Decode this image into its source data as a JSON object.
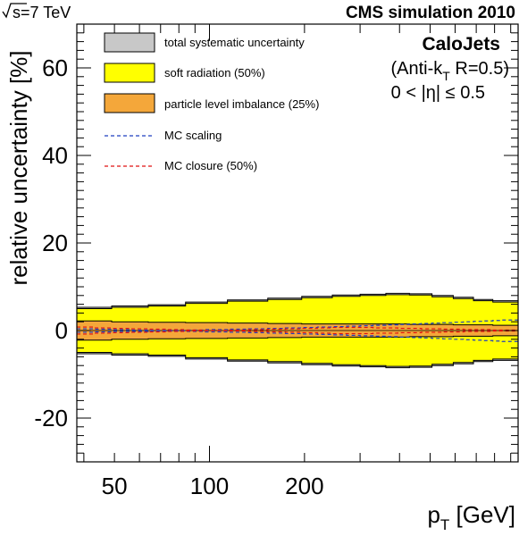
{
  "header": {
    "energy": "s=7 TeV",
    "experiment": "CMS simulation 2010"
  },
  "annotation": {
    "jet_type": "CaloJets",
    "algorithm": "(Anti-k",
    "algorithm_sub": "T",
    "algorithm_rest": " R=0.5)",
    "eta_range": "0 < |η| ≤ 0.5"
  },
  "colors": {
    "total": "#c8c8c8",
    "soft_radiation": "#ffff00",
    "imbalance": "#f4a73a",
    "mc_scaling": "#1f3fbf",
    "mc_closure": "#e01010"
  },
  "chart_data": {
    "type": "area",
    "xlabel": "p",
    "xlabel_sub": "T",
    "xlabel_unit": " [GeV]",
    "ylabel": "relative uncertainty [%]",
    "xscale": "log",
    "xlim": [
      38,
      950
    ],
    "ylim": [
      -30,
      70
    ],
    "x_tick_labels": [
      50,
      100,
      200
    ],
    "y_tick_labels": [
      -20,
      0,
      20,
      40,
      60
    ],
    "x_bin_edges": [
      38,
      43,
      49,
      56,
      64,
      74,
      84,
      97,
      114,
      133,
      153,
      174,
      196,
      220,
      245,
      272,
      300,
      330,
      362,
      395,
      430,
      468,
      507,
      548,
      592,
      638,
      686,
      737,
      790,
      846,
      950
    ],
    "legend_position": "top-left",
    "series": [
      {
        "name": "total systematic uncertainty",
        "style": "band",
        "values": [
          5.3,
          5.3,
          5.6,
          5.6,
          5.9,
          5.9,
          6.5,
          6.5,
          7.0,
          7.0,
          7.4,
          7.4,
          7.8,
          7.8,
          8.1,
          8.1,
          8.3,
          8.3,
          8.5,
          8.5,
          8.4,
          8.4,
          8.0,
          8.0,
          7.6,
          7.6,
          7.1,
          7.1,
          6.8,
          6.8
        ]
      },
      {
        "name": "soft radiation (50%)",
        "style": "band",
        "values": [
          5.0,
          5.0,
          5.3,
          5.3,
          5.6,
          5.6,
          6.2,
          6.2,
          6.7,
          6.7,
          7.1,
          7.1,
          7.5,
          7.5,
          7.8,
          7.8,
          8.0,
          8.0,
          8.2,
          8.2,
          8.1,
          8.1,
          7.7,
          7.7,
          7.3,
          7.3,
          6.8,
          6.8,
          6.5,
          6.5
        ]
      },
      {
        "name": "particle level imbalance (25%)",
        "style": "band",
        "values": [
          2.2,
          2.2,
          2.0,
          2.0,
          1.9,
          1.9,
          1.8,
          1.8,
          1.7,
          1.7,
          1.6,
          1.6,
          1.5,
          1.5,
          1.5,
          1.5,
          1.5,
          1.5,
          1.5,
          1.5,
          1.4,
          1.4,
          1.4,
          1.4,
          1.3,
          1.3,
          1.3,
          1.3,
          1.2,
          1.2
        ]
      },
      {
        "name": "MC scaling",
        "style": "dashed",
        "values": [
          -0.4,
          -0.3,
          -0.2,
          -0.2,
          -0.1,
          0.0,
          0.1,
          0.2,
          0.3,
          0.4,
          0.5,
          0.6,
          0.7,
          0.8,
          0.9,
          1.0,
          1.1,
          1.2,
          1.3,
          1.4,
          1.5,
          1.6,
          1.7,
          1.8,
          1.9,
          2.0,
          2.1,
          2.2,
          2.3,
          2.4
        ],
        "mirror": [
          0.4,
          0.3,
          0.2,
          0.1,
          0.0,
          -0.1,
          -0.2,
          -0.3,
          -0.4,
          -0.5,
          -0.6,
          -0.7,
          -0.8,
          -0.9,
          -1.0,
          -1.1,
          -1.2,
          -1.3,
          -1.4,
          -1.5,
          -1.6,
          -1.7,
          -1.8,
          -1.9,
          -2.0,
          -2.1,
          -2.2,
          -2.3,
          -2.4,
          -2.5
        ]
      },
      {
        "name": "MC closure (50%)",
        "style": "dashed",
        "values": [
          0.8,
          0.6,
          0.5,
          0.4,
          0.3,
          0.2,
          0.1,
          0.0,
          0.1,
          0.2,
          0.3,
          0.4,
          0.5,
          0.6,
          0.7,
          0.7,
          0.7,
          0.6,
          0.6,
          0.5,
          0.5,
          0.4,
          0.4,
          0.3,
          0.3,
          0.2,
          0.2,
          0.2,
          0.1,
          0.1
        ],
        "mirror": [
          -0.8,
          -0.6,
          -0.5,
          -0.4,
          -0.3,
          -0.2,
          -0.1,
          0.0,
          -0.1,
          -0.2,
          -0.3,
          -0.4,
          -0.5,
          -0.6,
          -0.7,
          -0.7,
          -0.7,
          -0.6,
          -0.6,
          -0.5,
          -0.5,
          -0.4,
          -0.4,
          -0.3,
          -0.3,
          -0.2,
          -0.2,
          -0.2,
          -0.1,
          -0.1
        ]
      }
    ]
  }
}
